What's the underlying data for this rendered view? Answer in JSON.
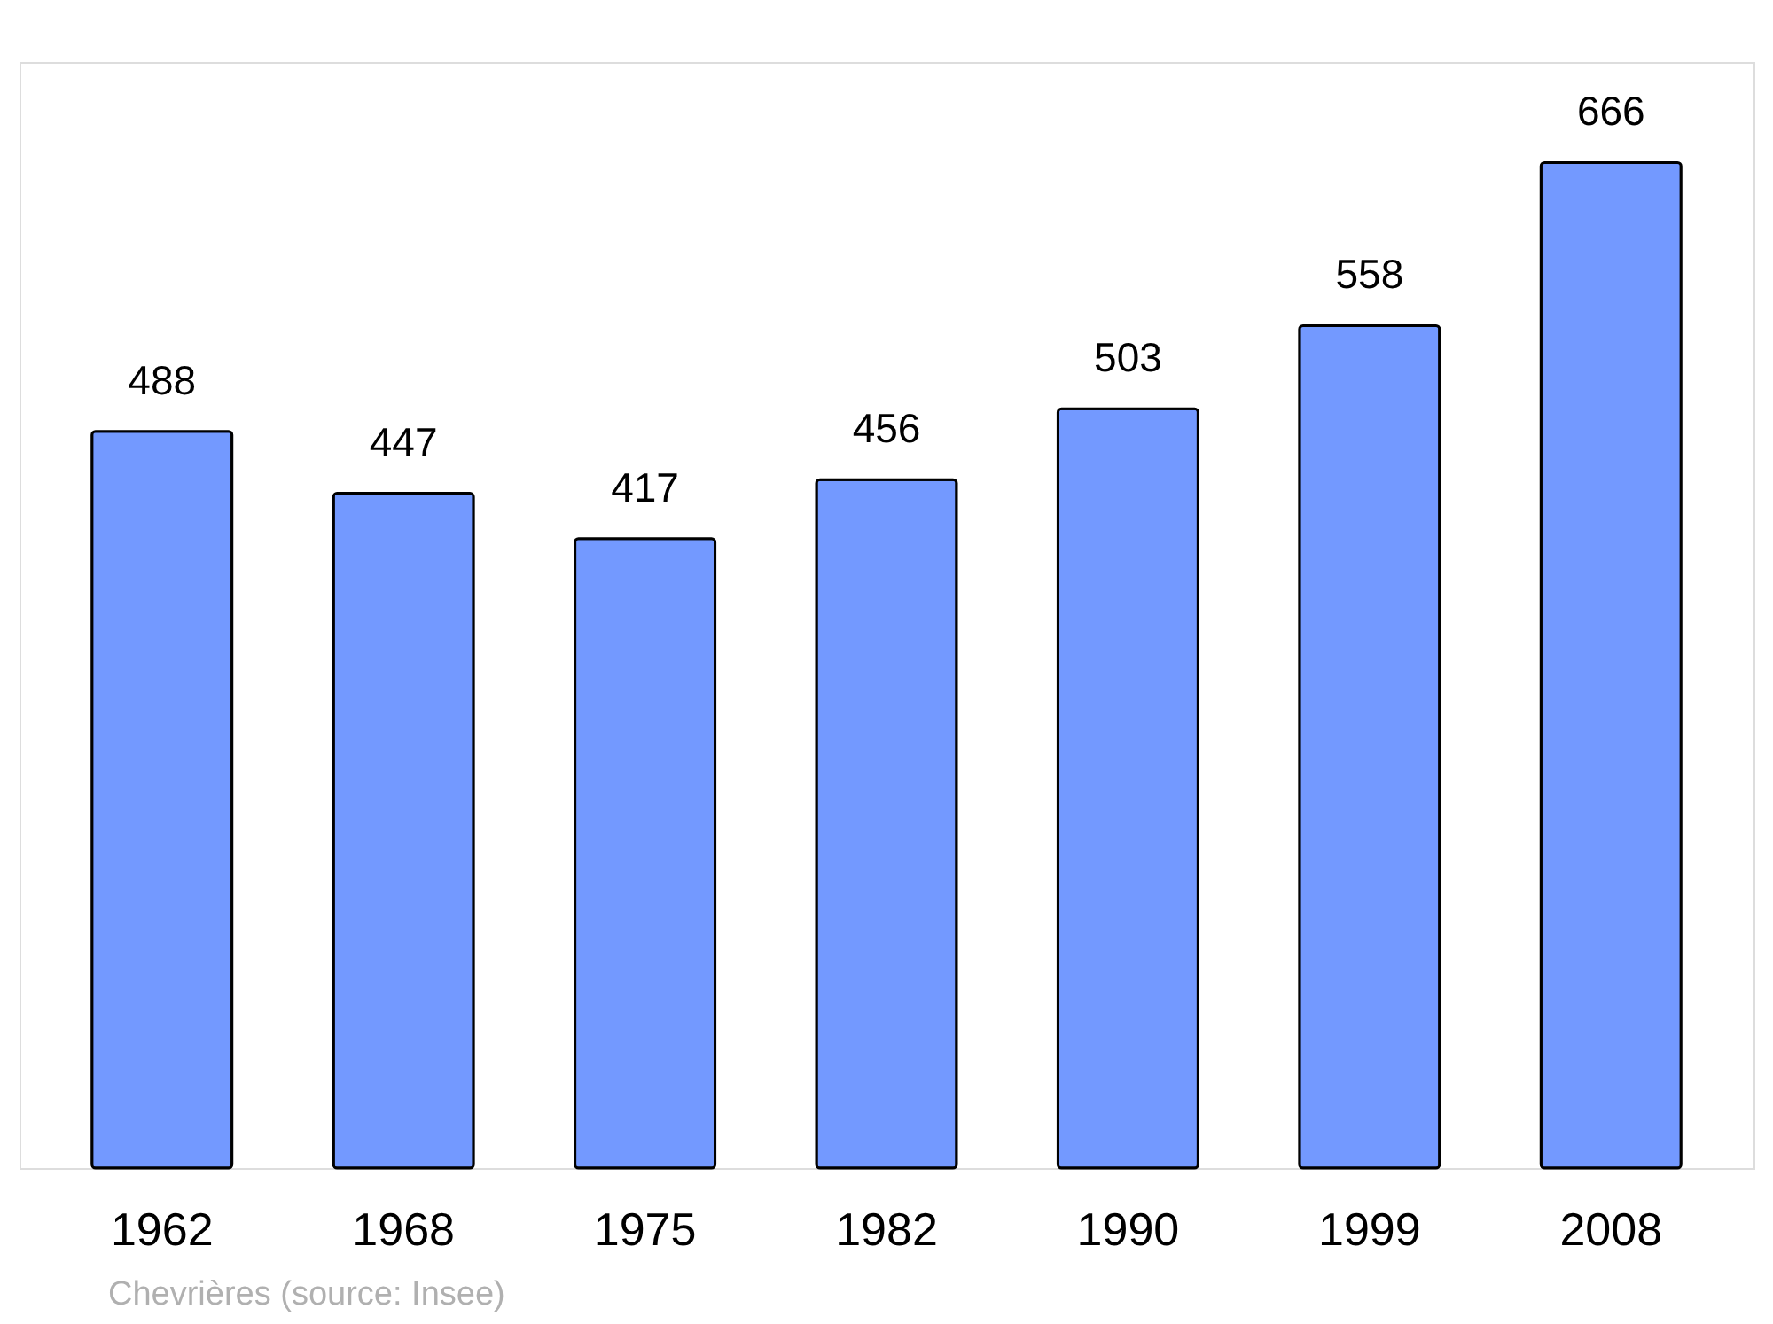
{
  "chart_data": {
    "type": "bar",
    "categories": [
      "1962",
      "1968",
      "1975",
      "1982",
      "1990",
      "1999",
      "2008"
    ],
    "values": [
      488,
      447,
      417,
      456,
      503,
      558,
      666
    ],
    "color": "#7399ff",
    "data_labels": true,
    "annotations": [
      "Chevrières    (source: Insee)"
    ]
  }
}
